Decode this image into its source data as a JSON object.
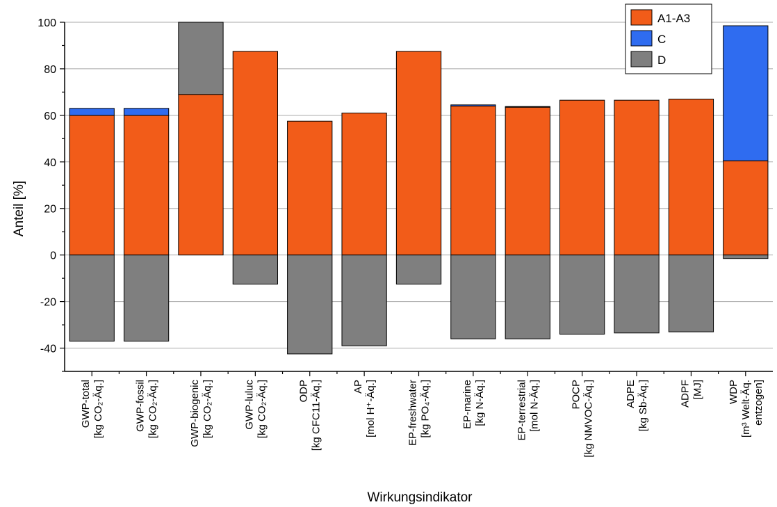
{
  "chart_data": {
    "type": "bar",
    "stacked": true,
    "xlabel": "Wirkungsindikator",
    "ylabel": "Anteil [%]",
    "ylim": [
      -50,
      100
    ],
    "yticks": [
      -40,
      -20,
      0,
      20,
      40,
      60,
      80,
      100
    ],
    "grid": true,
    "legend_position": "top-right",
    "categories": [
      {
        "name": "GWP-total",
        "unit": "[kg CO₂-Äq.]"
      },
      {
        "name": "GWP-fossil",
        "unit": "[kg CO₂-Äq.]"
      },
      {
        "name": "GWP-biogenic",
        "unit": "[kg CO₂-Äq.]"
      },
      {
        "name": "GWP-luluc",
        "unit": "[kg CO₂-Äq.]"
      },
      {
        "name": "ODP",
        "unit": "[kg CFC11-Äq.]"
      },
      {
        "name": "AP",
        "unit": "[mol H⁺-Äq.]"
      },
      {
        "name": "EP-freshwater",
        "unit": "[kg PO₄-Äq.]"
      },
      {
        "name": "EP-marine",
        "unit": "[kg N-Äq.]"
      },
      {
        "name": "EP-terrestrial",
        "unit": "[mol N-Äq.]"
      },
      {
        "name": "POCP",
        "unit": "[kg NMVOC-Äq.]"
      },
      {
        "name": "ADPE",
        "unit": "[kg Sb-Äq.]"
      },
      {
        "name": "ADPF",
        "unit": "[MJ]"
      },
      {
        "name": "WDP",
        "unit": "[m³ Welt-Äq.",
        "unit2": "entzogen]"
      }
    ],
    "series": [
      {
        "name": "A1-A3",
        "color": "#f25c19",
        "values": [
          60,
          60,
          69,
          87.5,
          57.5,
          61,
          87.5,
          64,
          63.5,
          66.5,
          66.5,
          67,
          40.5
        ]
      },
      {
        "name": "C",
        "color": "#2f6cf0",
        "values": [
          3,
          3,
          0,
          0,
          0,
          0,
          0,
          0.5,
          0.3,
          0,
          0,
          0,
          58
        ]
      },
      {
        "name": "D",
        "color": "#7f7f7f",
        "values": [
          -37,
          -37,
          31,
          -12.5,
          -42.5,
          -39,
          -12.5,
          -36,
          -36,
          -34,
          -33.5,
          -33,
          -1.5
        ]
      }
    ]
  }
}
